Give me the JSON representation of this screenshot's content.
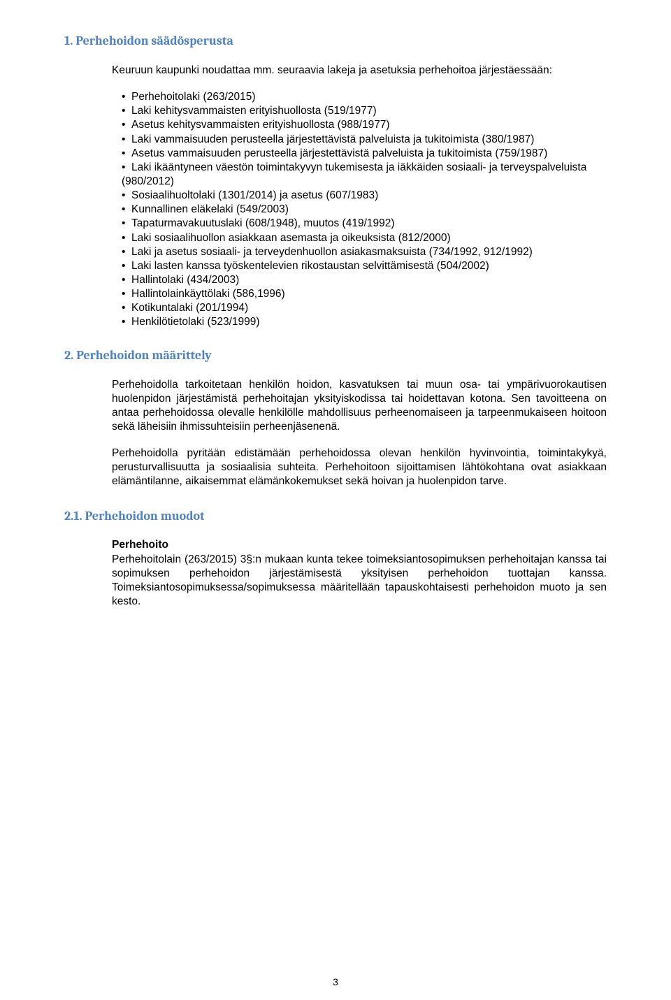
{
  "colors": {
    "heading": "#4f81bd",
    "text": "#000000",
    "background": "#ffffff"
  },
  "fonts": {
    "heading_family": "Cambria, Georgia, serif",
    "body_family": "Arial, Helvetica, sans-serif",
    "heading_size_pt": 14,
    "body_size_pt": 12
  },
  "section1": {
    "heading": "1. Perhehoidon säädösperusta",
    "intro": "Keuruun kaupunki noudattaa mm. seuraavia lakeja ja asetuksia perhehoitoa järjestäessään:",
    "bullets": [
      "Perhehoitolaki (263/2015)",
      "Laki kehitysvammaisten erityishuollosta (519/1977)",
      "Asetus kehitysvammaisten erityishuollosta (988/1977)",
      "Laki vammaisuuden perusteella järjestettävistä palveluista ja tukitoimista (380/1987)",
      "Asetus vammaisuuden perusteella järjestettävistä palveluista ja tukitoimista (759/1987)",
      "Laki ikääntyneen väestön toimintakyvyn tukemisesta ja iäkkäiden sosiaali- ja terveyspalveluista (980/2012)",
      "Sosiaalihuoltolaki (1301/2014) ja asetus (607/1983)",
      "Kunnallinen eläkelaki (549/2003)",
      "Tapaturmavakuutuslaki (608/1948), muutos (419/1992)",
      "Laki sosiaalihuollon asiakkaan asemasta ja oikeuksista (812/2000)",
      "Laki ja asetus sosiaali- ja terveydenhuollon asiakasmaksuista (734/1992, 912/1992)",
      "Laki lasten kanssa työskentelevien rikostaustan selvittämisestä (504/2002)",
      "Hallintolaki (434/2003)",
      "Hallintolainkäyttölaki (586,1996)",
      "Kotikuntalaki (201/1994)",
      "Henkilötietolaki (523/1999)"
    ]
  },
  "section2": {
    "heading": "2. Perhehoidon määrittely",
    "para1": "Perhehoidolla tarkoitetaan henkilön hoidon, kasvatuksen tai muun osa- tai ympärivuorokautisen huolenpidon järjestämistä perhehoitajan yksityiskodissa tai hoidettavan kotona. Sen tavoitteena on antaa perhehoidossa olevalle henkilölle mahdollisuus perheenomaiseen ja tarpeenmukaiseen hoitoon sekä läheisiin ihmissuhteisiin perheenjäsenenä.",
    "para2": "Perhehoidolla pyritään edistämään perhehoidossa olevan henkilön hyvinvointia, toimintakykyä, perusturvallisuutta ja sosiaalisia suhteita. Perhehoitoon sijoittamisen lähtökohtana ovat asiakkaan elämäntilanne, aikaisemmat elämänkokemukset sekä hoivan ja huolenpidon tarve."
  },
  "section21": {
    "heading": "2.1. Perhehoidon muodot",
    "subheading": "Perhehoito",
    "para": "Perhehoitolain (263/2015) 3§:n mukaan kunta tekee toimeksiantosopimuksen perhehoitajan kanssa tai sopimuksen perhehoidon järjestämisestä yksityisen perhehoidon tuottajan kanssa. Toimeksiantosopimuksessa/sopimuksessa määritellään tapauskohtaisesti perhehoidon muoto ja sen kesto."
  },
  "page_number": "3"
}
